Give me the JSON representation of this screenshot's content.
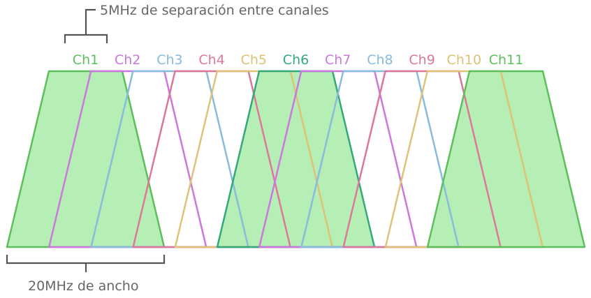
{
  "top_annotation": "5MHz de separación entre canales",
  "bottom_annotation": "20MHz de ancho",
  "channels": [
    {
      "label": "Ch1",
      "color": "#5cbf5c",
      "filled": true
    },
    {
      "label": "Ch2",
      "color": "#cc77dd",
      "filled": false
    },
    {
      "label": "Ch3",
      "color": "#88bbdd",
      "filled": false
    },
    {
      "label": "Ch4",
      "color": "#dd7799",
      "filled": false
    },
    {
      "label": "Ch5",
      "color": "#ddc277",
      "filled": false
    },
    {
      "label": "Ch6",
      "color": "#33a87a",
      "filled": true
    },
    {
      "label": "Ch7",
      "color": "#cc77dd",
      "filled": false
    },
    {
      "label": "Ch8",
      "color": "#88bbdd",
      "filled": false
    },
    {
      "label": "Ch9",
      "color": "#dd7799",
      "filled": false
    },
    {
      "label": "Ch10",
      "color": "#ddc277",
      "filled": false
    },
    {
      "label": "Ch11",
      "color": "#5cbf5c",
      "filled": true
    }
  ],
  "fill_color": "#b6efb6",
  "bracket_color": "#555555",
  "annotation_color": "#666666"
}
